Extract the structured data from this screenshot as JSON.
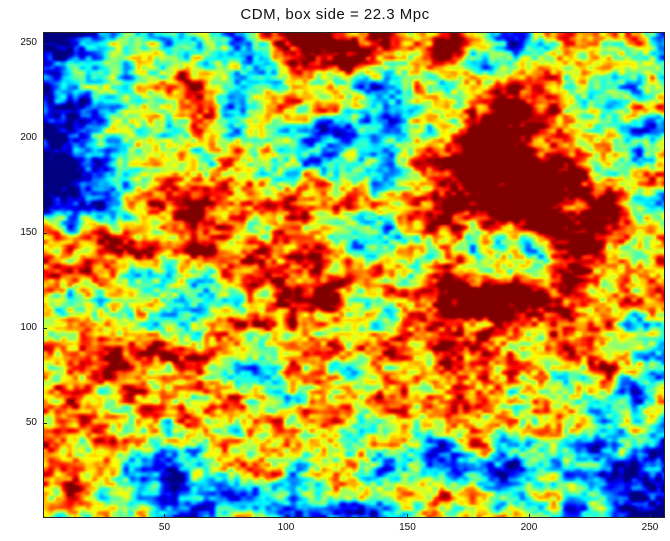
{
  "chart_data": {
    "type": "heatmap",
    "title": "CDM, box side = 22.3 Mpc",
    "xlabel": "",
    "ylabel": "",
    "xlim": [
      0,
      256
    ],
    "ylim": [
      0,
      256
    ],
    "x_ticks": [
      50,
      100,
      150,
      200,
      250
    ],
    "y_ticks": [
      50,
      100,
      150,
      200,
      250
    ],
    "x_tick_labels": [
      "50",
      "100",
      "150",
      "200",
      "250"
    ],
    "y_tick_labels": [
      "50",
      "100",
      "150",
      "200",
      "250"
    ],
    "grid": false,
    "colormap": "jet",
    "colors": {
      "low": "#1e6fd9",
      "mid_low": "#3ec6e0",
      "mid": "#b9e84a",
      "mid_high": "#f6d62a",
      "high": "#e2461e"
    }
  }
}
